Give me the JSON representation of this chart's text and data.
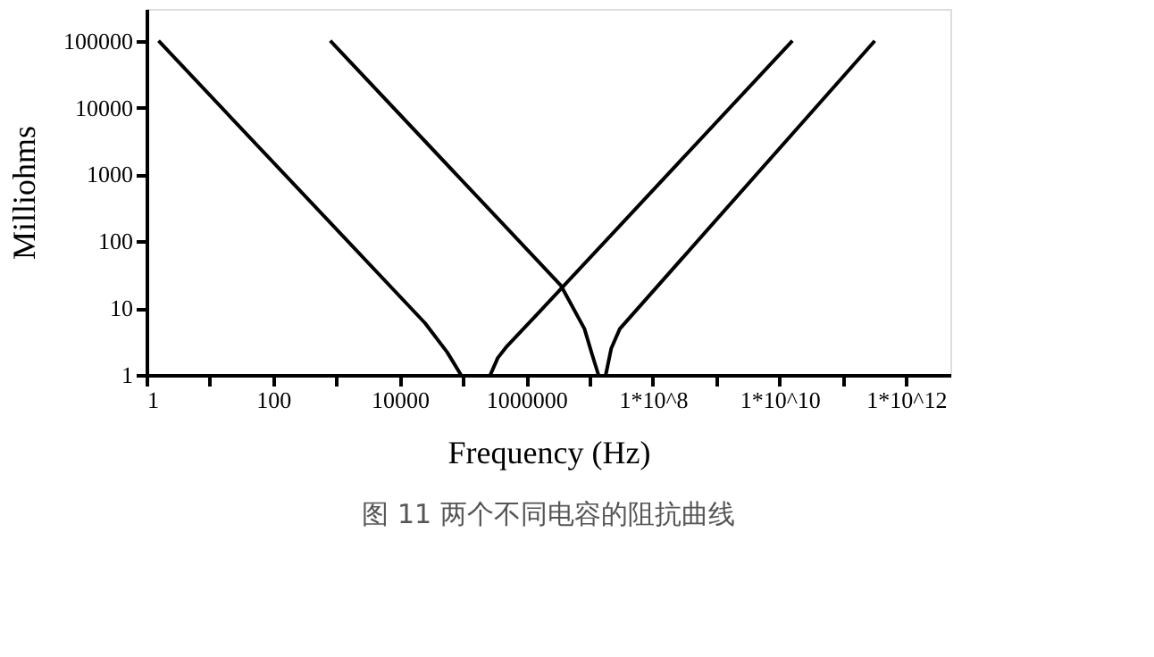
{
  "chart_data": {
    "type": "line",
    "title": "图 11 两个不同电容的阻抗曲线",
    "xlabel": "Frequency (Hz)",
    "ylabel": "Milliohms",
    "log": "xy",
    "grid": false,
    "marker": "none",
    "line_style": "solid",
    "xlim": [
      1,
      5000000000000
    ],
    "ylim": [
      1,
      300000
    ],
    "xticks": [
      1,
      {
        "value": 10,
        "label": null
      },
      100,
      {
        "value": 1000,
        "label": null
      },
      10000,
      {
        "value": 100000,
        "label": null
      },
      1000000,
      {
        "value": 10000000,
        "label": null
      },
      {
        "value": 100000000,
        "label": "1*10^8"
      },
      {
        "value": 1000000000,
        "label": null
      },
      {
        "value": 10000000000,
        "label": "1*10^10"
      },
      {
        "value": 100000000000,
        "label": null
      },
      {
        "value": 1000000000000,
        "label": "1*10^12"
      }
    ],
    "yticks": [
      1,
      10,
      100,
      1000,
      10000,
      100000
    ],
    "series": [
      {
        "color": "#000000",
        "x": [
          1.55,
          25000,
          56000,
          93000
        ],
        "values": [
          100000,
          6,
          2.2,
          1
        ]
      },
      {
        "color": "#000000",
        "x": [
          270000,
          355000,
          480000,
          1600000,
          16000000000
        ],
        "values": [
          1,
          1.8,
          2.6,
          8.7,
          100000
        ]
      },
      {
        "color": "#000000",
        "x": [
          800,
          3500000,
          8300000,
          11000000,
          13800000
        ],
        "values": [
          100000,
          22,
          4.9,
          2,
          1
        ]
      },
      {
        "color": "#000000",
        "x": [
          18000000,
          22000000,
          30000000,
          320000000000
        ],
        "values": [
          1,
          2.5,
          4.9,
          100000
        ]
      }
    ]
  }
}
